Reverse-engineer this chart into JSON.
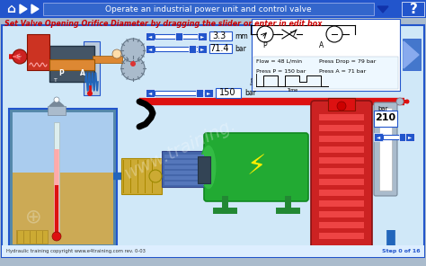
{
  "title_bar_text": "Operate an industrial power unit and control valve",
  "subtitle": "Set Valve Opening Orifice Diameter by dragging the slider or enter in edit box",
  "footer_left": "Hydraulic training copyright www.e4training.com rev. 0-03",
  "footer_right": "Step 0 of 16",
  "top_bar_color": "#2255cc",
  "bg_color": "#c8ddf0",
  "content_bg": "#d0e8f8",
  "subtitle_color": "#cc0000",
  "info_lines": [
    "Flow = 48 L/min    Press Drop = 79 bar",
    "Press P = 150 bar    Press A = 71 bar"
  ],
  "values": {
    "orifice_mm": "3.3",
    "pressure_bar_top": "71.4",
    "pressure_bar_mid": "150",
    "pressure_bar_bottom": "210"
  },
  "slider_color": "#2255cc",
  "box_outline_color": "#2255cc",
  "white": "#ffffff",
  "black": "#000000",
  "red_pipe": "#dd1111",
  "blue_pipe": "#2266bb",
  "green_motor": "#22aa33",
  "yellow": "#ffee00",
  "tan": "#cc9933",
  "gray": "#888888",
  "orange": "#dd8833",
  "red_valve": "#cc3322",
  "red_acc": "#cc2222",
  "nav_gray": "#aabbcc"
}
